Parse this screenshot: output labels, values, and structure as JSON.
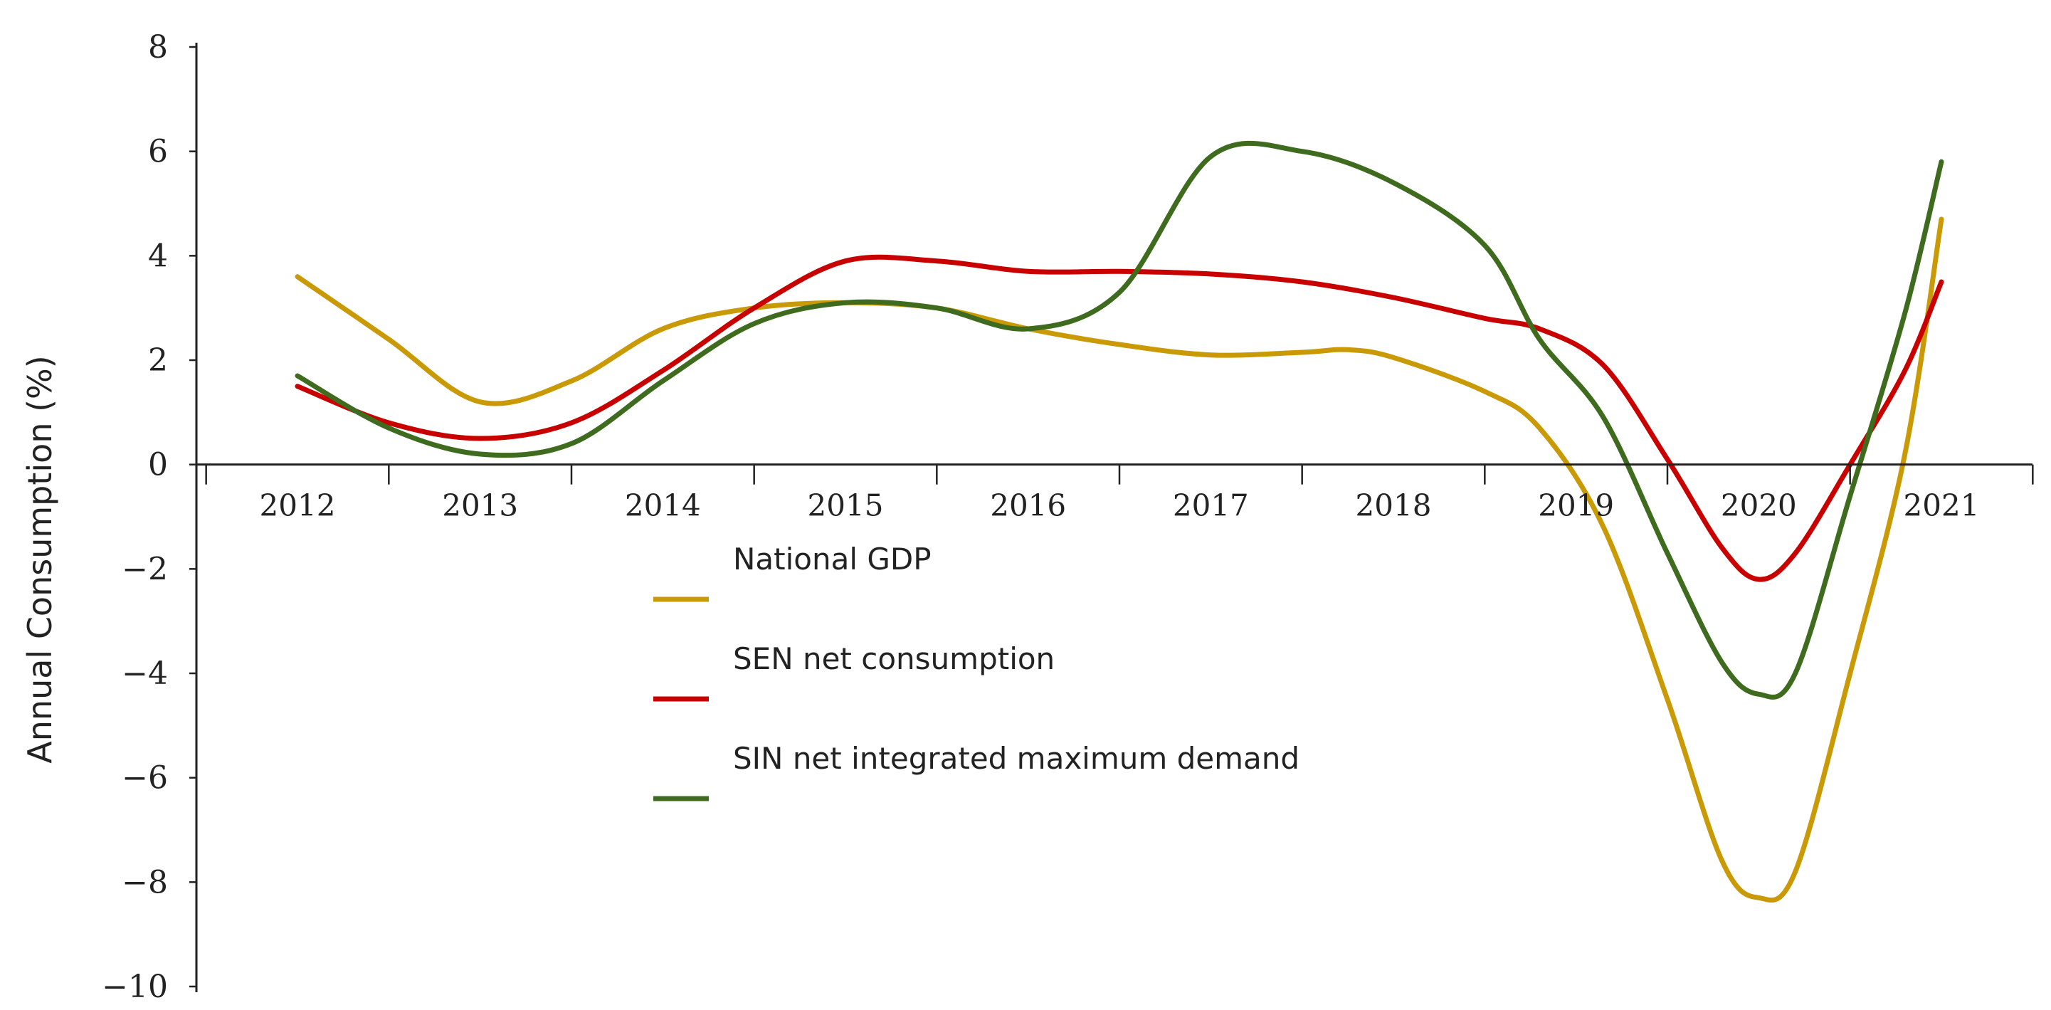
{
  "chart_data": {
    "type": "line",
    "title": "",
    "xlabel": "",
    "ylabel": "Annual Consumption (%)",
    "ylim": [
      -10,
      8
    ],
    "yticks": [
      8,
      6,
      4,
      2,
      0,
      -2,
      -4,
      -6,
      -8,
      -10
    ],
    "ytick_labels": [
      "8",
      "6",
      "4",
      "2",
      "0",
      "−2",
      "−4",
      "−6",
      "−8",
      "−10"
    ],
    "categories": [
      "2012",
      "2013",
      "2014",
      "2015",
      "2016",
      "2017",
      "2018",
      "2019",
      "2020",
      "2021"
    ],
    "grid": false,
    "legend_position": "center",
    "series": [
      {
        "name": "National GDP",
        "color": "#C99A06",
        "x": [
          2012,
          2012.5,
          2013,
          2013.5,
          2014,
          2014.5,
          2015,
          2015.5,
          2016,
          2016.5,
          2017,
          2017.5,
          2017.75,
          2018,
          2018.5,
          2018.8,
          2019.15,
          2019.5,
          2019.8,
          2020,
          2020.2,
          2020.5,
          2020.8,
          2021
        ],
        "values": [
          3.6,
          2.4,
          1.2,
          1.6,
          2.6,
          3.0,
          3.1,
          3.0,
          2.6,
          2.3,
          2.1,
          2.15,
          2.2,
          2.05,
          1.4,
          0.7,
          -1.2,
          -4.5,
          -7.6,
          -8.3,
          -7.8,
          -4.0,
          0.2,
          4.7
        ]
      },
      {
        "name": "SEN net consumption",
        "color": "#C80000",
        "x": [
          2012,
          2012.5,
          2013,
          2013.5,
          2014,
          2014.5,
          2015,
          2015.5,
          2016,
          2016.5,
          2017,
          2017.5,
          2018,
          2018.5,
          2018.8,
          2019.15,
          2019.5,
          2019.8,
          2020,
          2020.2,
          2020.5,
          2020.8,
          2021
        ],
        "values": [
          1.5,
          0.8,
          0.5,
          0.8,
          1.8,
          3.0,
          3.9,
          3.9,
          3.7,
          3.7,
          3.65,
          3.5,
          3.2,
          2.8,
          2.6,
          1.9,
          0.1,
          -1.6,
          -2.2,
          -1.7,
          0.0,
          1.8,
          3.5
        ]
      },
      {
        "name": "SIN net integrated maximum demand",
        "color": "#3E6B1E",
        "x": [
          2012,
          2012.5,
          2013,
          2013.5,
          2014,
          2014.5,
          2015,
          2015.5,
          2016,
          2016.5,
          2017,
          2017.5,
          2018,
          2018.5,
          2018.8,
          2019.15,
          2019.5,
          2019.8,
          2020,
          2020.2,
          2020.5,
          2020.8,
          2021
        ],
        "values": [
          1.7,
          0.7,
          0.2,
          0.4,
          1.6,
          2.7,
          3.1,
          3.0,
          2.6,
          3.3,
          5.9,
          6.0,
          5.4,
          4.2,
          2.4,
          0.9,
          -1.7,
          -3.8,
          -4.4,
          -4.0,
          -0.6,
          2.9,
          5.8
        ]
      }
    ]
  }
}
